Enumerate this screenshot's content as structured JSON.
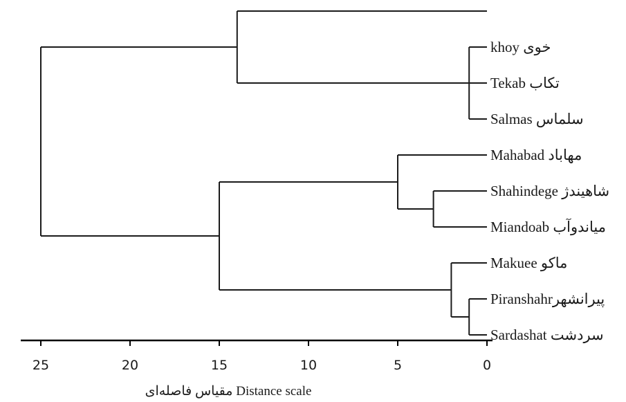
{
  "chart_data": {
    "type": "dendrogram",
    "xlabel": "مقیاس فاصله‌ای  Distance scale",
    "xlim": [
      0,
      25
    ],
    "x_direction": "reversed",
    "ticks": [
      25,
      20,
      15,
      10,
      5,
      0
    ],
    "leaves": [
      {
        "id": "top",
        "label": ""
      },
      {
        "id": "khoy",
        "label": "khoy خوی"
      },
      {
        "id": "tekab",
        "label": "Tekab تکاب"
      },
      {
        "id": "salmas",
        "label": "Salmas سلماس"
      },
      {
        "id": "mahabad",
        "label": "Mahabad مهاباد"
      },
      {
        "id": "shahindege",
        "label": "Shahindege شاهیندژ"
      },
      {
        "id": "miandoab",
        "label": "Miandoab میاندوآب"
      },
      {
        "id": "makuee",
        "label": "Makuee ماکو"
      },
      {
        "id": "piranshahr",
        "label": "Piranshahrپیرانشهر"
      },
      {
        "id": "sardashat",
        "label": "Sardashat سردشت"
      }
    ],
    "merges": [
      {
        "id": "A",
        "children": [
          "khoy",
          "tekab",
          "salmas"
        ],
        "distance": 1
      },
      {
        "id": "B",
        "children": [
          "top",
          "A"
        ],
        "distance": 14
      },
      {
        "id": "C",
        "children": [
          "shahindege",
          "miandoab"
        ],
        "distance": 3
      },
      {
        "id": "D",
        "children": [
          "mahabad",
          "C"
        ],
        "distance": 5
      },
      {
        "id": "E",
        "children": [
          "piranshahr",
          "sardashat"
        ],
        "distance": 1
      },
      {
        "id": "F",
        "children": [
          "makuee",
          "E"
        ],
        "distance": 2
      },
      {
        "id": "G",
        "children": [
          "D",
          "F"
        ],
        "distance": 15
      },
      {
        "id": "H",
        "children": [
          "B",
          "G"
        ],
        "distance": 25
      }
    ],
    "colors": {
      "line": "#1a1a1a",
      "axis": "#000000"
    }
  }
}
